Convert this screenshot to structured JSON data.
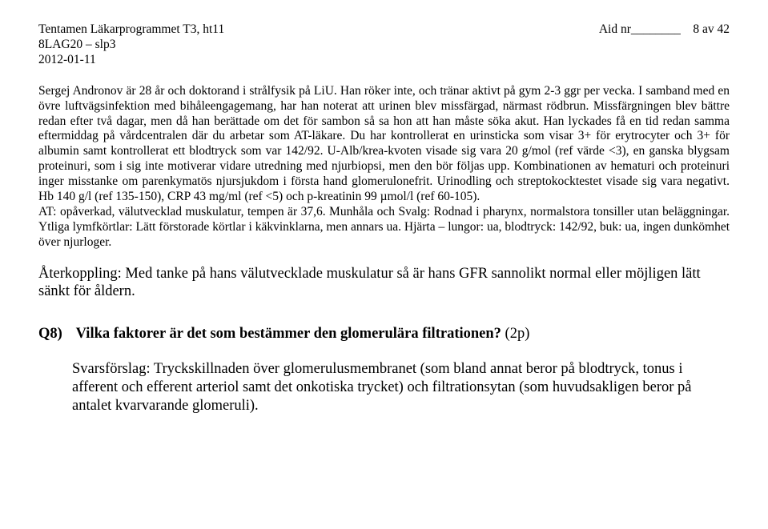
{
  "header": {
    "line1": "Tentamen Läkarprogrammet T3, ht11",
    "line2": "8LAG20 – slp3",
    "line3": "2012-01-11",
    "aid_prefix": "Aid nr",
    "aid_line": "________",
    "page_of": "8 av 42"
  },
  "clinical": "Sergej Andronov är 28 år och doktorand i strålfysik på LiU. Han röker inte, och tränar aktivt på gym 2-3 ggr per vecka. I samband med en övre luftvägsinfektion med bihåleengagemang, har han noterat att urinen blev missfärgad, närmast rödbrun. Missfärgningen blev bättre redan efter två dagar, men då han berättade om det för sambon så sa hon att han måste söka akut. Han lyckades få en tid redan samma eftermiddag på vårdcentralen där du arbetar som AT-läkare. Du har kontrollerat en urinsticka som visar 3+ för erytrocyter och 3+ för albumin samt kontrollerat ett blodtryck som var 142/92. U-Alb/krea-kvoten visade sig vara 20 g/mol (ref värde <3), en ganska blygsam proteinuri, som i sig inte motiverar vidare utredning med njurbiopsi, men den bör följas upp. Kombinationen av hematuri och proteinuri inger misstanke om parenkymatös njursjukdom i första hand glomerulonefrit. Urinodling och streptokocktestet visade sig vara negativt. Hb 140 g/l (ref 135-150), CRP 43 mg/ml (ref <5) och p-kreatinin 99 µmol/l (ref 60-105).\nAT: opåverkad, välutvecklad muskulatur, tempen är 37,6. Munhåla och Svalg: Rodnad i pharynx, normalstora tonsiller utan beläggningar. Ytliga lymfkörtlar: Lätt förstorade körtlar i käkvinklarna, men annars ua. Hjärta – lungor: ua, blodtryck: 142/92, buk: ua, ingen dunkömhet över njurloger.",
  "feedback": "Återkoppling: Med tanke på hans välutvecklade muskulatur så är hans GFR sannolikt normal eller möjligen lätt sänkt för åldern.",
  "question": {
    "label": "Q8)",
    "title": "Vilka faktorer är det som bestämmer den glomerulära filtrationen?",
    "points": "(2p)"
  },
  "answer": "Svarsförslag: Tryckskillnaden över glomerulusmembranet (som bland annat beror på blodtryck, tonus i afferent och efferent arteriol samt det onkotiska trycket) och filtrationsytan (som huvudsakligen beror på antalet kvarvarande glomeruli)."
}
